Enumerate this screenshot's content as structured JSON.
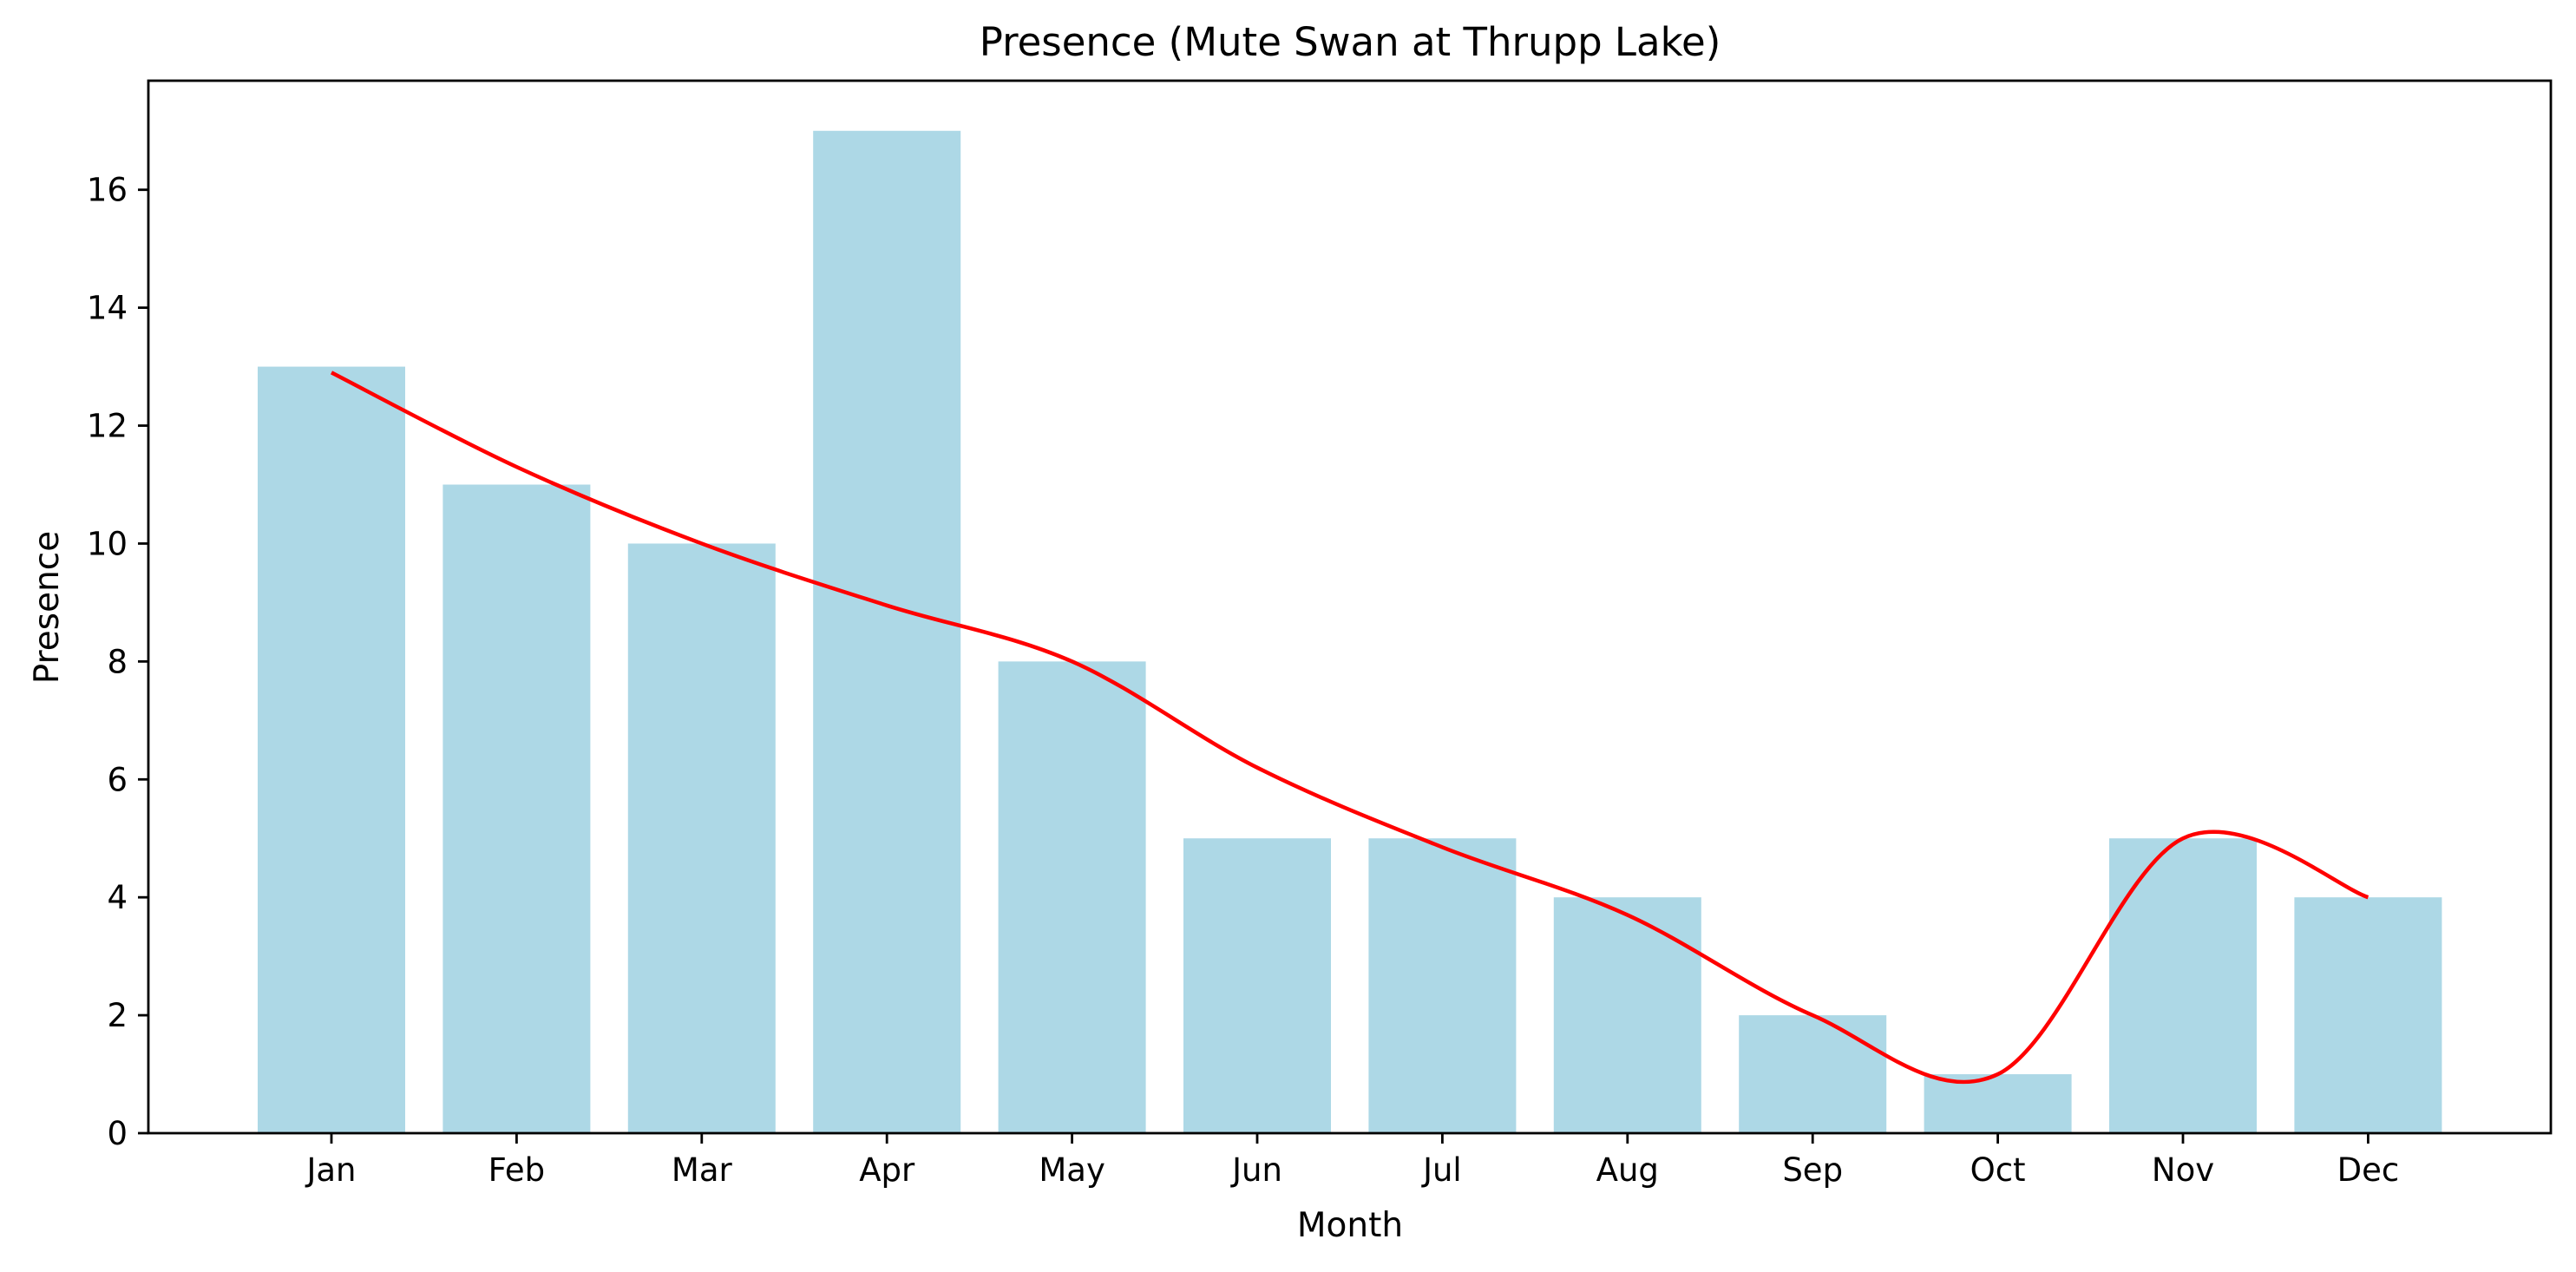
{
  "chart_data": {
    "type": "bar",
    "title": "Presence (Mute Swan at Thrupp Lake)",
    "xlabel": "Month",
    "ylabel": "Presence",
    "categories": [
      "Jan",
      "Feb",
      "Mar",
      "Apr",
      "May",
      "Jun",
      "Jul",
      "Aug",
      "Sep",
      "Oct",
      "Nov",
      "Dec"
    ],
    "series": [
      {
        "type": "bar",
        "color": "#add8e6",
        "values": [
          13,
          11,
          10,
          17,
          8,
          5,
          5,
          4,
          2,
          1,
          5,
          4
        ]
      },
      {
        "type": "line",
        "style": "smoothed trend",
        "color": "#ff0000",
        "values": [
          12.9,
          11.3,
          10.0,
          8.95,
          8.0,
          6.2,
          4.85,
          3.7,
          2.0,
          1.0,
          5.0,
          4.0
        ]
      }
    ],
    "ylim": [
      0,
      17.85
    ],
    "yticks": [
      0,
      2,
      4,
      6,
      8,
      10,
      12,
      14,
      16
    ],
    "grid": false,
    "legend": false
  }
}
